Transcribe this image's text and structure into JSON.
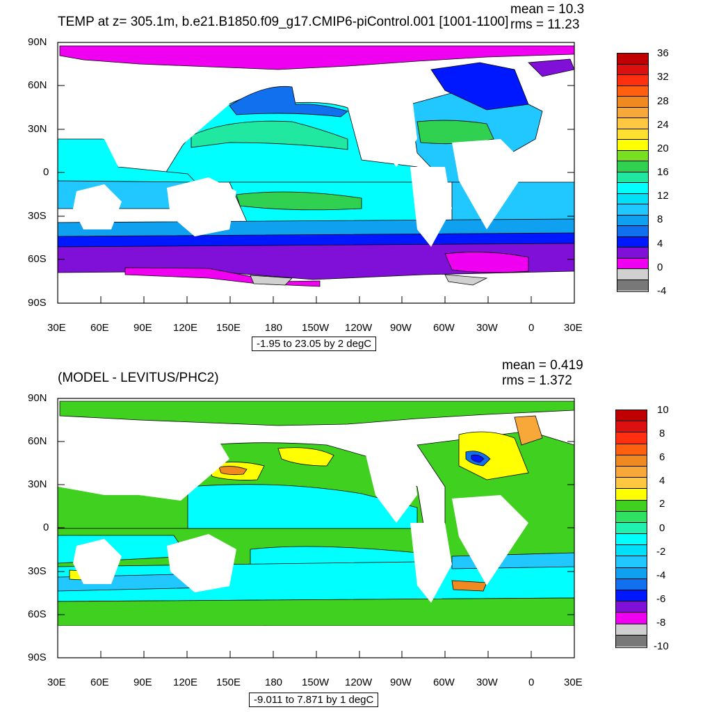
{
  "panels": [
    {
      "title": "TEMP at z= 305.1m, b.e21.B1850.f09_g17.CMIP6-piControl.001 [1001-1100]",
      "mean": "mean = 10.3",
      "rms": "rms = 11.23",
      "range_label": "-1.95 to 23.05 by 2 degC",
      "lat_ticks": [
        "90N",
        "60N",
        "30N",
        "0",
        "30S",
        "60S",
        "90S"
      ],
      "lon_ticks": [
        "30E",
        "60E",
        "90E",
        "120E",
        "150E",
        "180",
        "150W",
        "120W",
        "90W",
        "60W",
        "30W",
        "0",
        "30E"
      ],
      "colorbar": {
        "labels": [
          "36",
          "32",
          "28",
          "24",
          "20",
          "16",
          "12",
          "8",
          "4",
          "0",
          "-4"
        ],
        "colors": [
          "#c00000",
          "#dd1010",
          "#ff3010",
          "#ff6010",
          "#f08a20",
          "#f8a838",
          "#ffc840",
          "#ffe030",
          "#ffff00",
          "#78e020",
          "#30d050",
          "#20e8a0",
          "#00ffff",
          "#00e0f8",
          "#20c8ff",
          "#10a0f0",
          "#1070ee",
          "#0018ff",
          "#8010d8",
          "#f000f0",
          "#d0d0d0",
          "#787878"
        ]
      }
    },
    {
      "title": "(MODEL - LEVITUS/PHC2)",
      "mean": "mean = 0.419",
      "rms": "rms = 1.372",
      "range_label": "-9.011 to 7.871 by 1 degC",
      "lat_ticks": [
        "90N",
        "60N",
        "30N",
        "0",
        "30S",
        "60S",
        "90S"
      ],
      "lon_ticks": [
        "30E",
        "60E",
        "90E",
        "120E",
        "150E",
        "180",
        "150W",
        "120W",
        "90W",
        "60W",
        "30W",
        "0",
        "30E"
      ],
      "colorbar": {
        "labels": [
          "10",
          "8",
          "6",
          "4",
          "2",
          "0",
          "-2",
          "-4",
          "-6",
          "-8",
          "-10"
        ],
        "colors": [
          "#c00000",
          "#dd1010",
          "#ff3010",
          "#ff6010",
          "#f08a20",
          "#f8a838",
          "#ffc840",
          "#ffff00",
          "#40d020",
          "#30e060",
          "#20f0b0",
          "#00ffff",
          "#00e0f8",
          "#20c8ff",
          "#10a0f0",
          "#1070ee",
          "#0018ff",
          "#8010d8",
          "#f000f0",
          "#d0d0d0",
          "#787878"
        ]
      }
    }
  ]
}
